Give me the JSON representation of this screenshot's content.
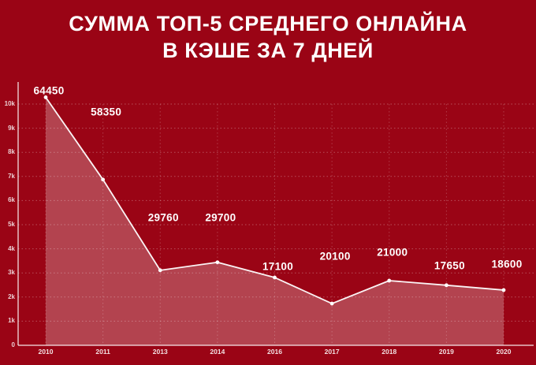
{
  "title": {
    "line1": "СУММА ТОП-5 СРЕДНЕГО ОНЛАЙНА",
    "line2": "В КЭШЕ ЗА 7 ДНЕЙ"
  },
  "colors": {
    "background": "#9a0415",
    "line": "#ffffff",
    "area_fill": "rgba(255,255,255,0.25)",
    "grid": "rgba(255,255,255,0.30)",
    "grid_vertical": "rgba(255,255,255,0.22)",
    "axis": "rgba(255,255,255,0.75)",
    "tick_text": "#f3d7da",
    "value_text": "#ffffff"
  },
  "chart_data": {
    "type": "area",
    "title": "СУММА ТОП-5 СРЕДНЕГО ОНЛАЙНА В КЭШЕ ЗА 7 ДНЕЙ",
    "categories": [
      "2010",
      "2011",
      "2013",
      "2014",
      "2016",
      "2017",
      "2018",
      "2019",
      "2020"
    ],
    "values": [
      64450,
      58350,
      29760,
      29700,
      17100,
      20100,
      21000,
      17650,
      18600
    ],
    "point_labels": [
      "64450",
      "58350",
      "29760",
      "29700",
      "17100",
      "20100",
      "21000",
      "17650",
      "18600"
    ],
    "plotted_k": [
      10.28,
      6.87,
      3.11,
      3.44,
      2.81,
      1.73,
      2.68,
      2.49,
      2.29
    ],
    "label_k": [
      10.57,
      9.66,
      5.3,
      5.3,
      3.27,
      3.7,
      3.86,
      3.31,
      3.37
    ],
    "y_ticks": [
      "10k",
      "9k",
      "8k",
      "7k",
      "6k",
      "5k",
      "4k",
      "3k",
      "2k",
      "1k",
      "0"
    ],
    "ylim": [
      0,
      10
    ],
    "xlabel": "",
    "ylabel": "",
    "grid": true,
    "legend": false,
    "markers": true
  }
}
